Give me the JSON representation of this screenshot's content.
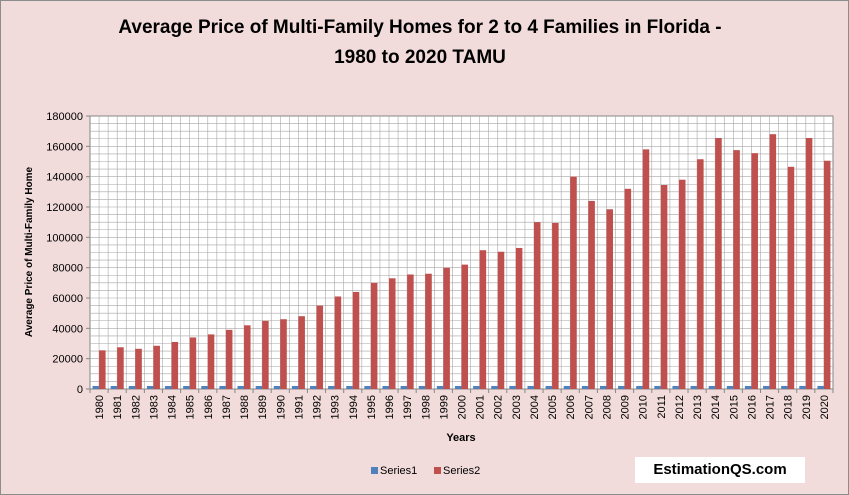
{
  "chart_data": {
    "type": "bar",
    "title_line1": "Average Price of Multi-Family Homes for 2 to 4 Families in Florida -",
    "title_line2": "1980 to 2020 TAMU",
    "xlabel": "Years",
    "ylabel": "Average Price of Multi-Family  Home",
    "ylim": [
      0,
      180000
    ],
    "yticks": [
      0,
      20000,
      40000,
      60000,
      80000,
      100000,
      120000,
      140000,
      160000,
      180000
    ],
    "grid": true,
    "legend_position": "bottom",
    "categories": [
      "1980",
      "1981",
      "1982",
      "1983",
      "1984",
      "1985",
      "1986",
      "1987",
      "1988",
      "1989",
      "1990",
      "1991",
      "1992",
      "1993",
      "1994",
      "1995",
      "1996",
      "1997",
      "1998",
      "1999",
      "2000",
      "2001",
      "2002",
      "2003",
      "2004",
      "2005",
      "2006",
      "2007",
      "2008",
      "2009",
      "2010",
      "2011",
      "2012",
      "2013",
      "2014",
      "2015",
      "2016",
      "2017",
      "2018",
      "2019",
      "2020"
    ],
    "series": [
      {
        "name": "Series1",
        "color": "#4f81bd",
        "values": [
          1980,
          1981,
          1982,
          1983,
          1984,
          1985,
          1986,
          1987,
          1988,
          1989,
          1990,
          1991,
          1992,
          1993,
          1994,
          1995,
          1996,
          1997,
          1998,
          1999,
          2000,
          2001,
          2002,
          2003,
          2004,
          2005,
          2006,
          2007,
          2008,
          2009,
          2010,
          2011,
          2012,
          2013,
          2014,
          2015,
          2016,
          2017,
          2018,
          2019,
          2020
        ]
      },
      {
        "name": "Series2",
        "color": "#c0504d",
        "values": [
          25500,
          27500,
          26500,
          28500,
          31000,
          34000,
          36000,
          39000,
          42000,
          45000,
          46000,
          48000,
          55000,
          61000,
          64000,
          70000,
          73000,
          75500,
          76000,
          80000,
          82000,
          91500,
          90500,
          93000,
          110000,
          109500,
          140000,
          124000,
          118500,
          132000,
          158000,
          134500,
          138000,
          151500,
          165500,
          157500,
          155500,
          168000,
          146500,
          165500,
          150500
        ]
      }
    ]
  },
  "watermark": "EstimationQS.com"
}
